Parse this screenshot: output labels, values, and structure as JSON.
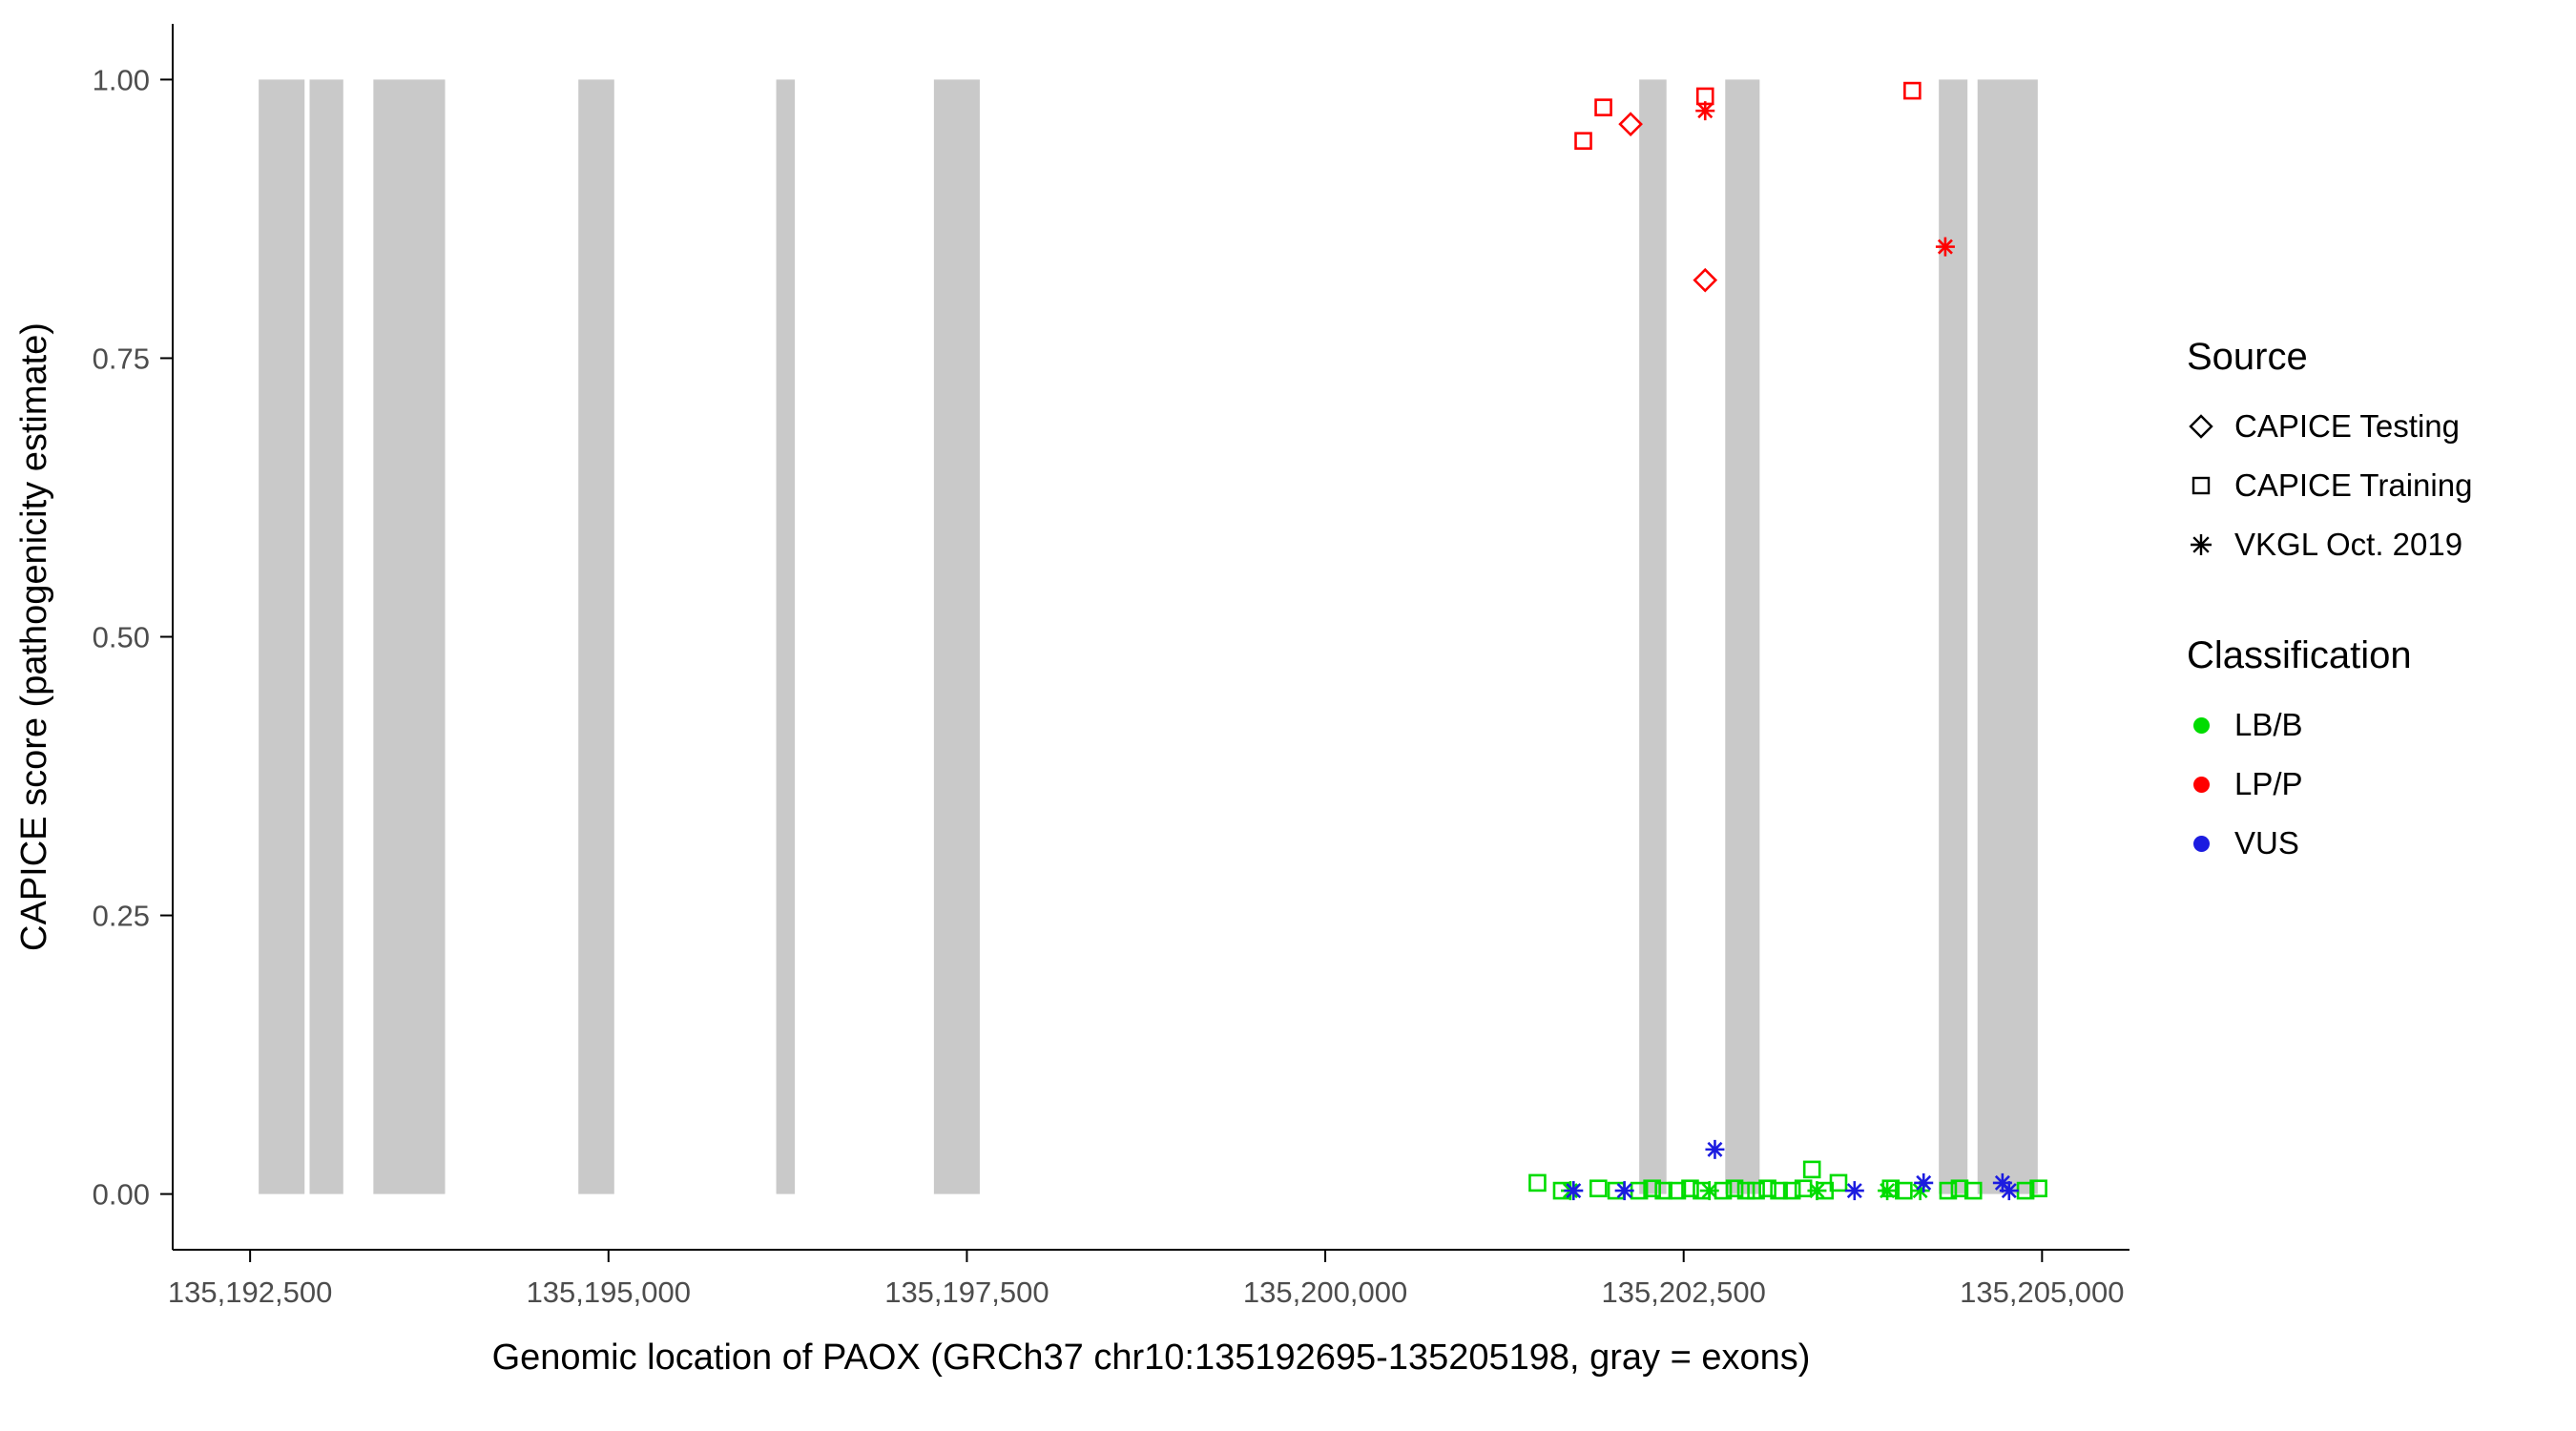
{
  "figure": {
    "background": "#ffffff",
    "axis_line_color": "#000000",
    "tick_label_color": "#4d4d4d"
  },
  "chart_data": {
    "type": "scatter",
    "title": "",
    "xlabel": "Genomic location of PAOX (GRCh37 chr10:135192695-135205198, gray = exons)",
    "ylabel": "CAPICE score (pathogenicity estimate)",
    "xlim": [
      135191960,
      135205610
    ],
    "ylim": [
      -0.05,
      1.05
    ],
    "grid": "off",
    "legend_position": "right",
    "x_ticks": [
      {
        "value": 135192500,
        "label": "135,192,500"
      },
      {
        "value": 135195000,
        "label": "135,195,000"
      },
      {
        "value": 135197500,
        "label": "135,197,500"
      },
      {
        "value": 135200000,
        "label": "135,200,000"
      },
      {
        "value": 135202500,
        "label": "135,202,500"
      },
      {
        "value": 135205000,
        "label": "135,205,000"
      }
    ],
    "y_ticks": [
      {
        "value": 0.0,
        "label": "0.00"
      },
      {
        "value": 0.25,
        "label": "0.25"
      },
      {
        "value": 0.5,
        "label": "0.50"
      },
      {
        "value": 0.75,
        "label": "0.75"
      },
      {
        "value": 1.0,
        "label": "1.00"
      }
    ],
    "exon_color": "#c9c9c9",
    "exons": [
      [
        135192560,
        135192880
      ],
      [
        135192915,
        135193150
      ],
      [
        135193360,
        135193860
      ],
      [
        135194790,
        135195040
      ],
      [
        135196170,
        135196300
      ],
      [
        135197270,
        135197590
      ],
      [
        135202190,
        135202380
      ],
      [
        135202790,
        135203030
      ],
      [
        135204280,
        135204480
      ],
      [
        135204550,
        135204970
      ]
    ],
    "class_colors": {
      "LB/B": "#00dc00",
      "LP/P": "#ff0000",
      "VUS": "#1c1ce0"
    },
    "points": [
      {
        "x": 135201480,
        "y": 0.01,
        "source": "training",
        "cls": "LB/B"
      },
      {
        "x": 135201650,
        "y": 0.003,
        "source": "training",
        "cls": "LB/B"
      },
      {
        "x": 135201905,
        "y": 0.005,
        "source": "training",
        "cls": "LB/B"
      },
      {
        "x": 135202030,
        "y": 0.003,
        "source": "training",
        "cls": "LB/B"
      },
      {
        "x": 135202190,
        "y": 0.003,
        "source": "training",
        "cls": "LB/B"
      },
      {
        "x": 135202280,
        "y": 0.005,
        "source": "training",
        "cls": "LB/B"
      },
      {
        "x": 135202360,
        "y": 0.003,
        "source": "training",
        "cls": "LB/B"
      },
      {
        "x": 135202455,
        "y": 0.003,
        "source": "training",
        "cls": "LB/B"
      },
      {
        "x": 135202545,
        "y": 0.005,
        "source": "training",
        "cls": "LB/B"
      },
      {
        "x": 135202625,
        "y": 0.003,
        "source": "training",
        "cls": "LB/B"
      },
      {
        "x": 135202775,
        "y": 0.003,
        "source": "training",
        "cls": "LB/B"
      },
      {
        "x": 135202855,
        "y": 0.005,
        "source": "training",
        "cls": "LB/B"
      },
      {
        "x": 135202935,
        "y": 0.003,
        "source": "training",
        "cls": "LB/B"
      },
      {
        "x": 135203005,
        "y": 0.003,
        "source": "training",
        "cls": "LB/B"
      },
      {
        "x": 135203085,
        "y": 0.005,
        "source": "training",
        "cls": "LB/B"
      },
      {
        "x": 135203165,
        "y": 0.003,
        "source": "training",
        "cls": "LB/B"
      },
      {
        "x": 135203255,
        "y": 0.003,
        "source": "training",
        "cls": "LB/B"
      },
      {
        "x": 135203335,
        "y": 0.005,
        "source": "training",
        "cls": "LB/B"
      },
      {
        "x": 135203395,
        "y": 0.022,
        "source": "training",
        "cls": "LB/B"
      },
      {
        "x": 135203485,
        "y": 0.003,
        "source": "training",
        "cls": "LB/B"
      },
      {
        "x": 135203580,
        "y": 0.01,
        "source": "training",
        "cls": "LB/B"
      },
      {
        "x": 135203945,
        "y": 0.005,
        "source": "training",
        "cls": "LB/B"
      },
      {
        "x": 135204035,
        "y": 0.003,
        "source": "training",
        "cls": "LB/B"
      },
      {
        "x": 135204345,
        "y": 0.003,
        "source": "training",
        "cls": "LB/B"
      },
      {
        "x": 135204425,
        "y": 0.005,
        "source": "training",
        "cls": "LB/B"
      },
      {
        "x": 135204520,
        "y": 0.003,
        "source": "training",
        "cls": "LB/B"
      },
      {
        "x": 135204885,
        "y": 0.003,
        "source": "training",
        "cls": "LB/B"
      },
      {
        "x": 135204975,
        "y": 0.005,
        "source": "training",
        "cls": "LB/B"
      },
      {
        "x": 135201710,
        "y": 0.003,
        "source": "vkgl",
        "cls": "LB/B"
      },
      {
        "x": 135202680,
        "y": 0.003,
        "source": "vkgl",
        "cls": "LB/B"
      },
      {
        "x": 135203430,
        "y": 0.003,
        "source": "vkgl",
        "cls": "LB/B"
      },
      {
        "x": 135203920,
        "y": 0.003,
        "source": "vkgl",
        "cls": "LB/B"
      },
      {
        "x": 135204150,
        "y": 0.003,
        "source": "vkgl",
        "cls": "LB/B"
      },
      {
        "x": 135201732,
        "y": 0.003,
        "source": "vkgl",
        "cls": "VUS"
      },
      {
        "x": 135202087,
        "y": 0.003,
        "source": "vkgl",
        "cls": "VUS"
      },
      {
        "x": 135202718,
        "y": 0.04,
        "source": "vkgl",
        "cls": "VUS"
      },
      {
        "x": 135203692,
        "y": 0.003,
        "source": "vkgl",
        "cls": "VUS"
      },
      {
        "x": 135204174,
        "y": 0.01,
        "source": "vkgl",
        "cls": "VUS"
      },
      {
        "x": 135204724,
        "y": 0.01,
        "source": "vkgl",
        "cls": "VUS"
      },
      {
        "x": 135204770,
        "y": 0.003,
        "source": "vkgl",
        "cls": "VUS"
      },
      {
        "x": 135201800,
        "y": 0.945,
        "source": "training",
        "cls": "LP/P"
      },
      {
        "x": 135201940,
        "y": 0.975,
        "source": "training",
        "cls": "LP/P"
      },
      {
        "x": 135202130,
        "y": 0.96,
        "source": "testing",
        "cls": "LP/P"
      },
      {
        "x": 135202650,
        "y": 0.985,
        "source": "training",
        "cls": "LP/P"
      },
      {
        "x": 135202650,
        "y": 0.972,
        "source": "vkgl",
        "cls": "LP/P"
      },
      {
        "x": 135202650,
        "y": 0.82,
        "source": "testing",
        "cls": "LP/P"
      },
      {
        "x": 135204095,
        "y": 0.99,
        "source": "training",
        "cls": "LP/P"
      },
      {
        "x": 135204325,
        "y": 0.85,
        "source": "vkgl",
        "cls": "LP/P"
      }
    ]
  },
  "legend": {
    "source": {
      "title": "Source",
      "items": [
        {
          "marker": "diamond",
          "label": "CAPICE Testing"
        },
        {
          "marker": "square",
          "label": "CAPICE Training"
        },
        {
          "marker": "asterisk",
          "label": "VKGL Oct. 2019"
        }
      ]
    },
    "classification": {
      "title": "Classification",
      "items": [
        {
          "color": "#00dc00",
          "label": "LB/B"
        },
        {
          "color": "#ff0000",
          "label": "LP/P"
        },
        {
          "color": "#1c1ce0",
          "label": "VUS"
        }
      ]
    }
  }
}
